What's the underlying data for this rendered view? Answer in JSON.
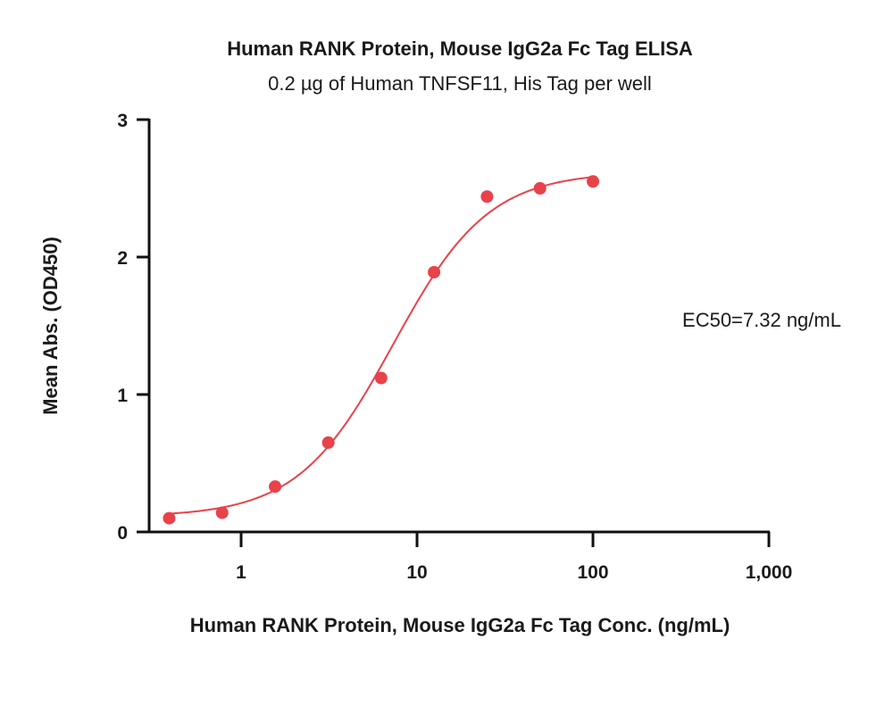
{
  "colors": {
    "series": "#e8424a",
    "axis": "#111111",
    "text": "#1a1a1a"
  },
  "chart_data": {
    "type": "scatter",
    "title": "Human RANK Protein, Mouse IgG2a Fc Tag ELISA",
    "subtitle": "0.2 µg of Human TNFSF11, His Tag per well",
    "xlabel": "Human RANK Protein, Mouse IgG2a Fc Tag Conc. (ng/mL)",
    "ylabel": "Mean Abs. (OD450)",
    "xscale": "log",
    "xlim": [
      0.3,
      1000
    ],
    "ylim": [
      0,
      3
    ],
    "xticks": [
      1,
      10,
      100,
      1000
    ],
    "xtick_labels": [
      "1",
      "10",
      "100",
      "1,000"
    ],
    "yticks": [
      0,
      1,
      2,
      3
    ],
    "ytick_labels": [
      "0",
      "1",
      "2",
      "3"
    ],
    "grid": false,
    "annotation": "EC50=7.32 ng/mL",
    "series": [
      {
        "x": [
          0.39,
          0.78,
          1.56,
          3.13,
          6.25,
          12.5,
          25,
          50,
          100
        ],
        "y": [
          0.1,
          0.14,
          0.33,
          0.65,
          1.12,
          1.89,
          2.44,
          2.5,
          2.55
        ]
      }
    ],
    "fit": {
      "model": "4PL",
      "bottom": 0.11,
      "top": 2.62,
      "ec50": 7.32,
      "hill": 1.6,
      "x_range": [
        0.39,
        100
      ]
    }
  }
}
